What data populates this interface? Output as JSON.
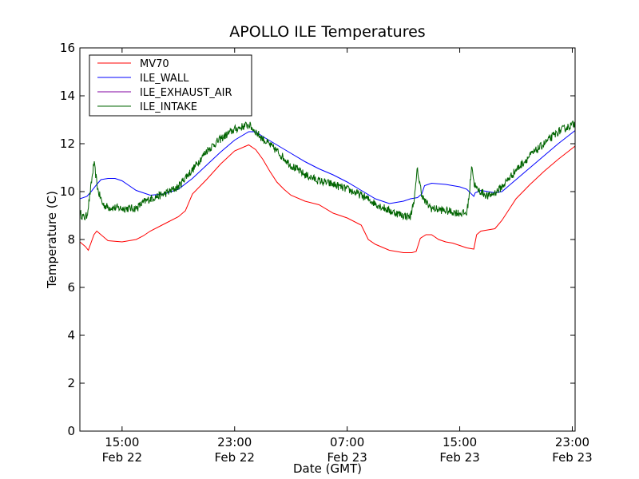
{
  "chart_data": {
    "type": "line",
    "title": "APOLLO ILE Temperatures",
    "xlabel": "Date (GMT)",
    "ylabel": "Temperature (C)",
    "xlim": [
      12.0,
      47.2
    ],
    "ylim": [
      0,
      16
    ],
    "yticks": [
      0,
      2,
      4,
      6,
      8,
      10,
      12,
      14,
      16
    ],
    "x_unit": "hours after Feb 22 00:00 GMT",
    "xticks": [
      {
        "x": 15,
        "label_time": "15:00",
        "label_date": "Feb 22"
      },
      {
        "x": 23,
        "label_time": "23:00",
        "label_date": "Feb 22"
      },
      {
        "x": 31,
        "label_time": "07:00",
        "label_date": "Feb 23"
      },
      {
        "x": 39,
        "label_time": "15:00",
        "label_date": "Feb 23"
      },
      {
        "x": 47,
        "label_time": "23:00",
        "label_date": "Feb 23"
      }
    ],
    "grid": false,
    "legend_position": "top-left",
    "series": [
      {
        "name": "MV70",
        "color": "#ff0000",
        "noise": 0,
        "x": [
          12.0,
          12.4,
          12.6,
          13.0,
          13.2,
          13.5,
          14.0,
          15.0,
          16.0,
          16.5,
          17.0,
          18.0,
          19.0,
          19.5,
          20.0,
          21.0,
          22.0,
          23.0,
          24.0,
          24.5,
          25.0,
          25.5,
          26.0,
          26.5,
          27.0,
          28.0,
          29.0,
          30.0,
          31.0,
          32.0,
          32.5,
          33.0,
          34.0,
          35.0,
          35.6,
          35.9,
          36.2,
          36.6,
          37.0,
          37.5,
          38.0,
          38.5,
          39.0,
          39.5,
          40.0,
          40.2,
          40.5,
          41.0,
          41.5,
          42.0,
          43.0,
          44.0,
          45.0,
          46.0,
          47.2
        ],
        "y": [
          7.9,
          7.7,
          7.55,
          8.2,
          8.35,
          8.2,
          7.95,
          7.9,
          8.0,
          8.15,
          8.35,
          8.65,
          8.95,
          9.2,
          9.9,
          10.5,
          11.15,
          11.7,
          11.95,
          11.75,
          11.35,
          10.85,
          10.4,
          10.1,
          9.85,
          9.6,
          9.45,
          9.1,
          8.9,
          8.6,
          8.0,
          7.8,
          7.55,
          7.45,
          7.45,
          7.5,
          8.05,
          8.2,
          8.2,
          8.0,
          7.9,
          7.85,
          7.75,
          7.65,
          7.6,
          8.2,
          8.35,
          8.4,
          8.45,
          8.8,
          9.7,
          10.3,
          10.85,
          11.35,
          11.9
        ]
      },
      {
        "name": "ILE_WALL",
        "color": "#0000ff",
        "noise": 0,
        "x": [
          12.0,
          12.5,
          12.8,
          13.2,
          13.5,
          14.0,
          14.5,
          15.0,
          15.5,
          16.0,
          17.0,
          18.0,
          19.0,
          20.0,
          21.0,
          22.0,
          23.0,
          24.0,
          24.5,
          25.0,
          26.0,
          27.0,
          28.0,
          29.0,
          30.0,
          31.0,
          32.0,
          33.0,
          34.0,
          35.0,
          35.5,
          36.0,
          36.3,
          36.5,
          37.0,
          38.0,
          39.0,
          39.5,
          40.0,
          40.1,
          40.5,
          41.0,
          41.5,
          42.0,
          43.0,
          44.0,
          45.0,
          46.0,
          47.2
        ],
        "y": [
          9.7,
          9.8,
          10.0,
          10.3,
          10.5,
          10.55,
          10.55,
          10.45,
          10.25,
          10.05,
          9.85,
          9.9,
          10.1,
          10.55,
          11.1,
          11.65,
          12.15,
          12.5,
          12.5,
          12.3,
          11.95,
          11.6,
          11.25,
          10.95,
          10.7,
          10.4,
          10.05,
          9.7,
          9.5,
          9.6,
          9.7,
          9.75,
          9.9,
          10.25,
          10.35,
          10.3,
          10.2,
          10.1,
          9.8,
          9.95,
          10.05,
          10.0,
          9.95,
          10.0,
          10.5,
          11.0,
          11.5,
          12.0,
          12.55
        ]
      },
      {
        "name": "ILE_EXHAUST_AIR",
        "color": "#8000a0",
        "noise": 0,
        "x": [],
        "y": []
      },
      {
        "name": "ILE_INTAKE",
        "color": "#006400",
        "noise": 0.28,
        "x": [
          12.0,
          12.3,
          12.5,
          12.7,
          13.0,
          13.1,
          13.3,
          13.5,
          13.6,
          13.8,
          14.0,
          15.0,
          16.0,
          16.5,
          17.0,
          18.0,
          19.0,
          19.5,
          20.0,
          20.5,
          21.0,
          22.0,
          23.0,
          24.0,
          24.5,
          25.0,
          26.0,
          27.0,
          28.0,
          29.0,
          30.0,
          31.0,
          32.0,
          33.0,
          34.0,
          35.0,
          35.5,
          35.8,
          36.0,
          36.1,
          36.3,
          36.5,
          37.0,
          38.0,
          39.0,
          39.5,
          39.7,
          39.85,
          40.0,
          40.2,
          40.5,
          41.0,
          41.5,
          42.0,
          43.0,
          44.0,
          45.0,
          46.0,
          47.2
        ],
        "y": [
          9.1,
          8.9,
          9.0,
          9.8,
          11.2,
          10.8,
          10.0,
          9.7,
          9.5,
          9.4,
          9.35,
          9.3,
          9.3,
          9.55,
          9.7,
          9.9,
          10.2,
          10.6,
          10.9,
          11.3,
          11.7,
          12.2,
          12.6,
          12.8,
          12.5,
          12.2,
          11.7,
          11.1,
          10.7,
          10.45,
          10.3,
          10.1,
          9.85,
          9.5,
          9.2,
          9.0,
          8.95,
          9.8,
          11.0,
          10.5,
          9.9,
          9.6,
          9.3,
          9.2,
          9.1,
          9.1,
          10.0,
          11.2,
          10.4,
          10.1,
          10.0,
          9.8,
          9.95,
          10.2,
          10.9,
          11.5,
          12.0,
          12.5,
          12.85
        ]
      }
    ]
  }
}
